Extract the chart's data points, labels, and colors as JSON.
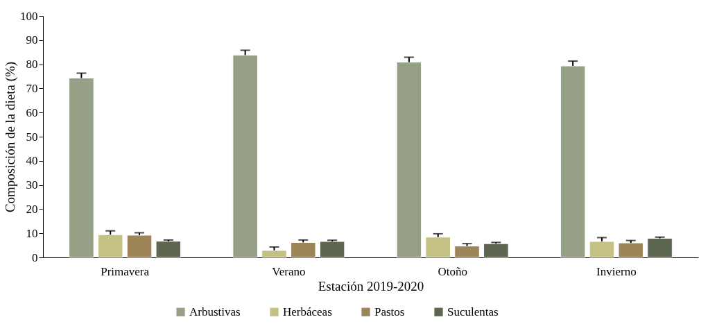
{
  "chart_data": {
    "type": "bar",
    "xlabel": "Estación 2019-2020",
    "ylabel": "Composición de la dieta (%)",
    "categories": [
      "Primavera",
      "Verano",
      "Otoño",
      "Invierno"
    ],
    "series": [
      {
        "name": "Arbustivas",
        "color": "#95a086",
        "values": [
          74.3,
          83.8,
          80.9,
          79.3
        ],
        "errors": [
          [
            74.3,
            76.3
          ],
          [
            83.8,
            85.8
          ],
          [
            80.9,
            82.9
          ],
          [
            79.3,
            81.3
          ]
        ]
      },
      {
        "name": "Herbáceas",
        "color": "#c5c083",
        "values": [
          9.4,
          2.9,
          8.4,
          6.6
        ],
        "errors": [
          [
            9.4,
            11.0
          ],
          [
            2.9,
            4.3
          ],
          [
            8.4,
            9.8
          ],
          [
            6.6,
            8.2
          ]
        ]
      },
      {
        "name": "Pastos",
        "color": "#9e8459",
        "values": [
          9.2,
          6.2,
          4.7,
          6.0
        ],
        "errors": [
          [
            9.2,
            10.2
          ],
          [
            6.2,
            7.2
          ],
          [
            4.7,
            5.7
          ],
          [
            6.0,
            7.0
          ]
        ]
      },
      {
        "name": "Suculentas",
        "color": "#5c6650",
        "values": [
          6.7,
          6.6,
          5.7,
          7.9
        ],
        "errors": [
          [
            6.7,
            7.2
          ],
          [
            6.6,
            7.1
          ],
          [
            5.7,
            6.2
          ],
          [
            7.9,
            8.4
          ]
        ]
      }
    ],
    "ylim": [
      0,
      100
    ],
    "yticks": [
      0,
      10,
      20,
      30,
      40,
      50,
      60,
      70,
      80,
      90,
      100
    ],
    "grid": false,
    "legend": "bottom"
  }
}
